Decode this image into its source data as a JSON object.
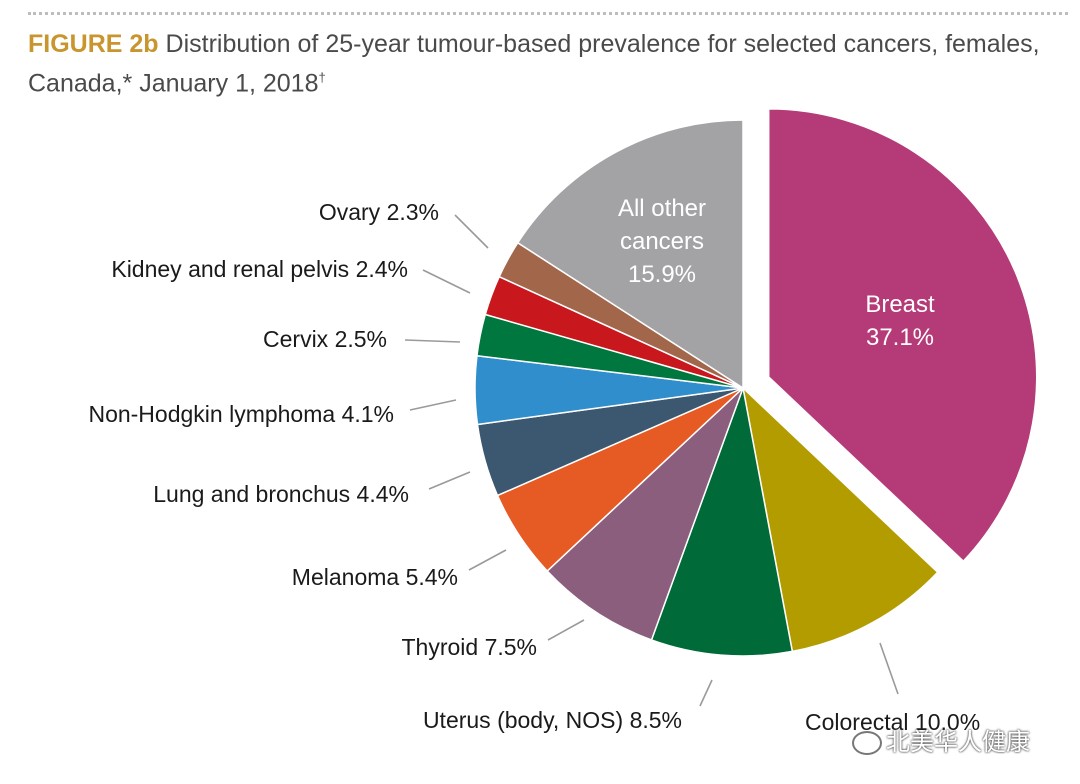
{
  "header": {
    "figure_label": "FIGURE 2b",
    "title_text": "Distribution of 25-year tumour-based prevalence for selected cancers, females,",
    "title_line2": "Canada,* January 1, 2018",
    "title_dagger": "†"
  },
  "watermark": "北美华人健康",
  "chart_data": {
    "type": "pie",
    "title": "Distribution of 25-year tumour-based prevalence for selected cancers, females, Canada,* January 1, 2018†",
    "unit": "%",
    "slices": [
      {
        "name": "Breast",
        "value": 37.1,
        "label": "37.1%",
        "color": "#b53a78",
        "exploded": true,
        "label_inside": true
      },
      {
        "name": "Colorectal",
        "value": 10.0,
        "label": "Colorectal 10.0%",
        "color": "#b39c00"
      },
      {
        "name": "Uterus (body, NOS)",
        "value": 8.5,
        "label": "Uterus (body, NOS) 8.5%",
        "color": "#006b39"
      },
      {
        "name": "Thyroid",
        "value": 7.5,
        "label": "Thyroid 7.5%",
        "color": "#8b5e7d"
      },
      {
        "name": "Melanoma",
        "value": 5.4,
        "label": "Melanoma 5.4%",
        "color": "#e65a24"
      },
      {
        "name": "Lung and bronchus",
        "value": 4.4,
        "label": "Lung and bronchus 4.4%",
        "color": "#3c5870"
      },
      {
        "name": "Non-Hodgkin lymphoma",
        "value": 4.1,
        "label": "Non-Hodgkin lymphoma 4.1%",
        "color": "#2f8ecb"
      },
      {
        "name": "Cervix",
        "value": 2.5,
        "label": "Cervix 2.5%",
        "color": "#00773f"
      },
      {
        "name": "Kidney and renal pelvis",
        "value": 2.4,
        "label": "Kidney and renal pelvis 2.4%",
        "color": "#c8181e"
      },
      {
        "name": "Ovary",
        "value": 2.3,
        "label": "Ovary 2.3%",
        "color": "#a2674b"
      },
      {
        "name": "All other cancers",
        "value": 15.9,
        "label_lines": [
          "All other",
          "cancers",
          "15.9%"
        ],
        "color": "#a3a3a6",
        "label_inside": true
      }
    ]
  }
}
